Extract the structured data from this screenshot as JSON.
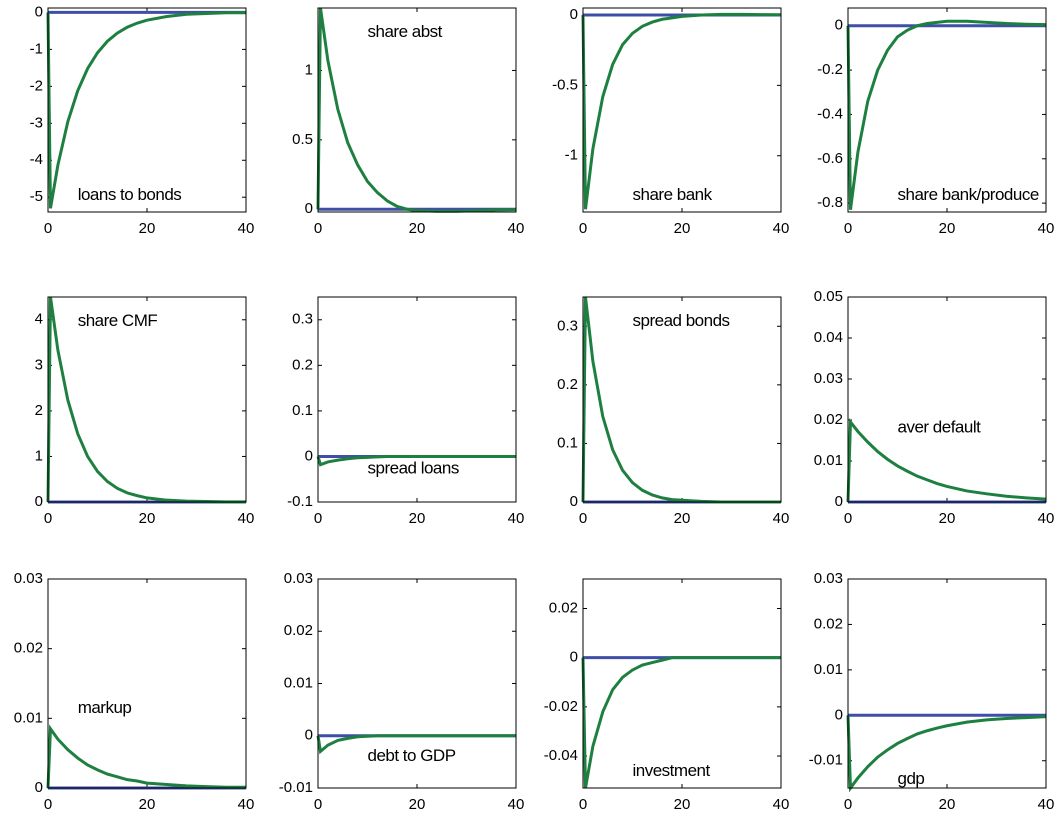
{
  "chart_data": [
    {
      "type": "line",
      "annotation": "loans to bonds",
      "x": [
        0,
        0.5,
        2,
        4,
        6,
        8,
        10,
        12,
        14,
        16,
        18,
        20,
        24,
        28,
        32,
        36,
        40
      ],
      "xlim": [
        0,
        40
      ],
      "xticks": [
        0,
        20,
        40
      ],
      "ylim": [
        -5.4,
        0.12
      ],
      "yticks": [
        -5,
        -4,
        -3,
        -2,
        -1,
        0
      ],
      "series": [
        {
          "color": "#3f4fa8",
          "values": [
            0,
            0,
            0,
            0,
            0,
            0,
            0,
            0,
            0,
            0,
            0,
            0,
            0,
            0,
            0,
            0,
            0
          ]
        },
        {
          "color": "#1e8040",
          "values": [
            0,
            -5.3,
            -4.13,
            -2.96,
            -2.12,
            -1.52,
            -1.09,
            -0.78,
            -0.56,
            -0.4,
            -0.29,
            -0.21,
            -0.11,
            -0.05,
            -0.03,
            -0.01,
            -0.01
          ]
        }
      ]
    },
    {
      "type": "line",
      "annotation": "share abst",
      "x": [
        0,
        0.5,
        2,
        4,
        6,
        8,
        10,
        12,
        14,
        16,
        18,
        20,
        24,
        28,
        32,
        36,
        40
      ],
      "xlim": [
        0,
        40
      ],
      "xticks": [
        0,
        20,
        40
      ],
      "ylim": [
        -0.02,
        1.45
      ],
      "yticks": [
        0,
        0.5,
        1
      ],
      "series": [
        {
          "color": "#3f4fa8",
          "values": [
            0,
            0,
            0,
            0,
            0,
            0,
            0,
            0,
            0,
            0,
            0,
            0,
            0,
            0,
            0,
            0,
            0
          ]
        },
        {
          "color": "#1e8040",
          "values": [
            0,
            1.45,
            1.07,
            0.72,
            0.48,
            0.32,
            0.2,
            0.12,
            0.06,
            0.02,
            0,
            -0.01,
            -0.015,
            -0.015,
            -0.01,
            -0.005,
            -0.003
          ]
        }
      ]
    },
    {
      "type": "line",
      "annotation": "share bank",
      "x": [
        0,
        0.5,
        2,
        4,
        6,
        8,
        10,
        12,
        14,
        16,
        18,
        20,
        24,
        28,
        32,
        36,
        40
      ],
      "xlim": [
        0,
        40
      ],
      "xticks": [
        0,
        20,
        40
      ],
      "ylim": [
        -1.4,
        0.05
      ],
      "yticks": [
        -1,
        -0.5,
        0
      ],
      "series": [
        {
          "color": "#3f4fa8",
          "values": [
            0,
            0,
            0,
            0,
            0,
            0,
            0,
            0,
            0,
            0,
            0,
            0,
            0,
            0,
            0,
            0,
            0
          ]
        },
        {
          "color": "#1e8040",
          "values": [
            0,
            -1.38,
            -0.95,
            -0.58,
            -0.35,
            -0.21,
            -0.13,
            -0.08,
            -0.05,
            -0.03,
            -0.02,
            -0.01,
            0,
            0.005,
            0.005,
            0.003,
            0.002
          ]
        }
      ]
    },
    {
      "type": "line",
      "annotation": "share bank/produce",
      "x": [
        0,
        0.5,
        2,
        4,
        6,
        8,
        10,
        12,
        14,
        16,
        18,
        20,
        24,
        28,
        32,
        36,
        40
      ],
      "xlim": [
        0,
        40
      ],
      "xticks": [
        0,
        20,
        40
      ],
      "ylim": [
        -0.84,
        0.08
      ],
      "yticks": [
        -0.8,
        -0.6,
        -0.4,
        -0.2,
        0
      ],
      "series": [
        {
          "color": "#3f4fa8",
          "values": [
            0,
            0,
            0,
            0,
            0,
            0,
            0,
            0,
            0,
            0,
            0,
            0,
            0,
            0,
            0,
            0,
            0
          ]
        },
        {
          "color": "#1e8040",
          "values": [
            0,
            -0.83,
            -0.57,
            -0.34,
            -0.2,
            -0.11,
            -0.05,
            -0.02,
            0,
            0.01,
            0.015,
            0.02,
            0.02,
            0.015,
            0.01,
            0.007,
            0.005
          ]
        }
      ]
    },
    {
      "type": "line",
      "annotation": "share CMF",
      "x": [
        0,
        0.5,
        2,
        4,
        6,
        8,
        10,
        12,
        14,
        16,
        18,
        20,
        24,
        28,
        32,
        36,
        40
      ],
      "xlim": [
        0,
        40
      ],
      "xticks": [
        0,
        20,
        40
      ],
      "ylim": [
        0,
        4.5
      ],
      "yticks": [
        0,
        1,
        2,
        3,
        4
      ],
      "series": [
        {
          "color": "#3f4fa8",
          "values": [
            0,
            0,
            0,
            0,
            0,
            0,
            0,
            0,
            0,
            0,
            0,
            0,
            0,
            0,
            0,
            0,
            0
          ]
        },
        {
          "color": "#1e8040",
          "values": [
            0,
            4.5,
            3.33,
            2.24,
            1.5,
            1.0,
            0.67,
            0.45,
            0.3,
            0.2,
            0.14,
            0.09,
            0.04,
            0.02,
            0.01,
            0.004,
            0.002
          ]
        }
      ]
    },
    {
      "type": "line",
      "annotation": "spread loans",
      "x": [
        0,
        0.5,
        2,
        4,
        6,
        8,
        10,
        12,
        14,
        16,
        18,
        20,
        24,
        28,
        32,
        36,
        40
      ],
      "xlim": [
        0,
        40
      ],
      "xticks": [
        0,
        20,
        40
      ],
      "ylim": [
        -0.1,
        0.35
      ],
      "yticks": [
        -0.1,
        0,
        0.1,
        0.2,
        0.3
      ],
      "series": [
        {
          "color": "#3f4fa8",
          "values": [
            0,
            0,
            0,
            0,
            0,
            0,
            0,
            0,
            0,
            0,
            0,
            0,
            0,
            0,
            0,
            0,
            0
          ]
        },
        {
          "color": "#1e8040",
          "values": [
            0,
            -0.018,
            -0.012,
            -0.008,
            -0.005,
            -0.003,
            -0.002,
            -0.001,
            0,
            0,
            0,
            0,
            0,
            0,
            0,
            0,
            0
          ]
        }
      ]
    },
    {
      "type": "line",
      "annotation": "spread bonds",
      "x": [
        0,
        0.5,
        2,
        4,
        6,
        8,
        10,
        12,
        14,
        16,
        18,
        20,
        24,
        28,
        32,
        36,
        40
      ],
      "xlim": [
        0,
        40
      ],
      "xticks": [
        0,
        20,
        40
      ],
      "ylim": [
        0,
        0.35
      ],
      "yticks": [
        0,
        0.1,
        0.2,
        0.3
      ],
      "series": [
        {
          "color": "#3f4fa8",
          "values": [
            0,
            0,
            0,
            0,
            0,
            0,
            0,
            0,
            0,
            0,
            0,
            0,
            0,
            0,
            0,
            0,
            0
          ]
        },
        {
          "color": "#1e8040",
          "values": [
            0,
            0.35,
            0.24,
            0.146,
            0.089,
            0.054,
            0.033,
            0.02,
            0.012,
            0.007,
            0.004,
            0.003,
            0.001,
            0,
            0,
            0,
            0
          ]
        }
      ]
    },
    {
      "type": "line",
      "annotation": "aver default",
      "x": [
        0,
        0.5,
        2,
        4,
        6,
        8,
        10,
        12,
        14,
        16,
        18,
        20,
        24,
        28,
        32,
        36,
        40
      ],
      "xlim": [
        0,
        40
      ],
      "xticks": [
        0,
        20,
        40
      ],
      "ylim": [
        0,
        0.05
      ],
      "yticks": [
        0,
        0.01,
        0.02,
        0.03,
        0.04,
        0.05
      ],
      "series": [
        {
          "color": "#3f4fa8",
          "values": [
            0,
            0,
            0,
            0,
            0,
            0,
            0,
            0,
            0,
            0,
            0,
            0,
            0,
            0,
            0,
            0,
            0
          ]
        },
        {
          "color": "#1e8040",
          "values": [
            0,
            0.0195,
            0.0172,
            0.0146,
            0.0123,
            0.0104,
            0.0088,
            0.0075,
            0.0063,
            0.0054,
            0.0045,
            0.0038,
            0.0027,
            0.002,
            0.0014,
            0.001,
            0.0007
          ]
        }
      ]
    },
    {
      "type": "line",
      "annotation": "markup",
      "x": [
        0,
        0.5,
        2,
        4,
        6,
        8,
        10,
        12,
        14,
        16,
        18,
        20,
        24,
        28,
        32,
        36,
        40
      ],
      "xlim": [
        0,
        40
      ],
      "xticks": [
        0,
        20,
        40
      ],
      "ylim": [
        0,
        0.03
      ],
      "yticks": [
        0,
        0.01,
        0.02,
        0.03
      ],
      "series": [
        {
          "color": "#3f4fa8",
          "values": [
            0,
            0,
            0,
            0,
            0,
            0,
            0,
            0,
            0,
            0,
            0,
            0,
            0,
            0,
            0,
            0,
            0
          ]
        },
        {
          "color": "#1e8040",
          "values": [
            0,
            0.0085,
            0.007,
            0.0055,
            0.0043,
            0.0033,
            0.0026,
            0.002,
            0.0016,
            0.0012,
            0.001,
            0.0007,
            0.0005,
            0.0003,
            0.0002,
            0.0001,
            0.0001
          ]
        }
      ]
    },
    {
      "type": "line",
      "annotation": "debt to GDP",
      "x": [
        0,
        0.5,
        2,
        4,
        6,
        8,
        10,
        12,
        14,
        16,
        18,
        20,
        24,
        28,
        32,
        36,
        40
      ],
      "xlim": [
        0,
        40
      ],
      "xticks": [
        0,
        20,
        40
      ],
      "ylim": [
        -0.01,
        0.03
      ],
      "yticks": [
        -0.01,
        0,
        0.01,
        0.02,
        0.03
      ],
      "series": [
        {
          "color": "#3f4fa8",
          "values": [
            0,
            0,
            0,
            0,
            0,
            0,
            0,
            0,
            0,
            0,
            0,
            0,
            0,
            0,
            0,
            0,
            0
          ]
        },
        {
          "color": "#1e8040",
          "values": [
            0,
            -0.003,
            -0.0018,
            -0.0009,
            -0.0005,
            -0.0002,
            -0.0001,
            0,
            0,
            0,
            0,
            0,
            0,
            0,
            0,
            0,
            0
          ]
        }
      ]
    },
    {
      "type": "line",
      "annotation": "investment",
      "x": [
        0,
        0.5,
        2,
        4,
        6,
        8,
        10,
        12,
        14,
        16,
        18,
        20,
        24,
        28,
        32,
        36,
        40
      ],
      "xlim": [
        0,
        40
      ],
      "xticks": [
        0,
        20,
        40
      ],
      "ylim": [
        -0.053,
        0.032
      ],
      "yticks": [
        -0.04,
        -0.02,
        0,
        0.02
      ],
      "series": [
        {
          "color": "#3f4fa8",
          "values": [
            0,
            0,
            0,
            0,
            0,
            0,
            0,
            0,
            0,
            0,
            0,
            0,
            0,
            0,
            0,
            0,
            0
          ]
        },
        {
          "color": "#1e8040",
          "values": [
            0,
            -0.053,
            -0.036,
            -0.022,
            -0.013,
            -0.008,
            -0.005,
            -0.003,
            -0.002,
            -0.001,
            0,
            0,
            0,
            0,
            0,
            0,
            0
          ]
        }
      ]
    },
    {
      "type": "line",
      "annotation": "gdp",
      "x": [
        0,
        0.5,
        2,
        4,
        6,
        8,
        10,
        12,
        14,
        16,
        18,
        20,
        24,
        28,
        32,
        36,
        40
      ],
      "xlim": [
        0,
        40
      ],
      "xticks": [
        0,
        20,
        40
      ],
      "ylim": [
        -0.016,
        0.03
      ],
      "yticks": [
        -0.01,
        0,
        0.01,
        0.02,
        0.03
      ],
      "series": [
        {
          "color": "#3f4fa8",
          "values": [
            0,
            0,
            0,
            0,
            0,
            0,
            0,
            0,
            0,
            0,
            0,
            0,
            0,
            0,
            0,
            0,
            0
          ]
        },
        {
          "color": "#1e8040",
          "values": [
            0,
            -0.016,
            -0.0138,
            -0.0113,
            -0.0092,
            -0.0076,
            -0.0062,
            -0.0051,
            -0.0041,
            -0.0034,
            -0.0028,
            -0.0023,
            -0.0015,
            -0.001,
            -0.0007,
            -0.0005,
            -0.0003
          ]
        }
      ]
    }
  ]
}
